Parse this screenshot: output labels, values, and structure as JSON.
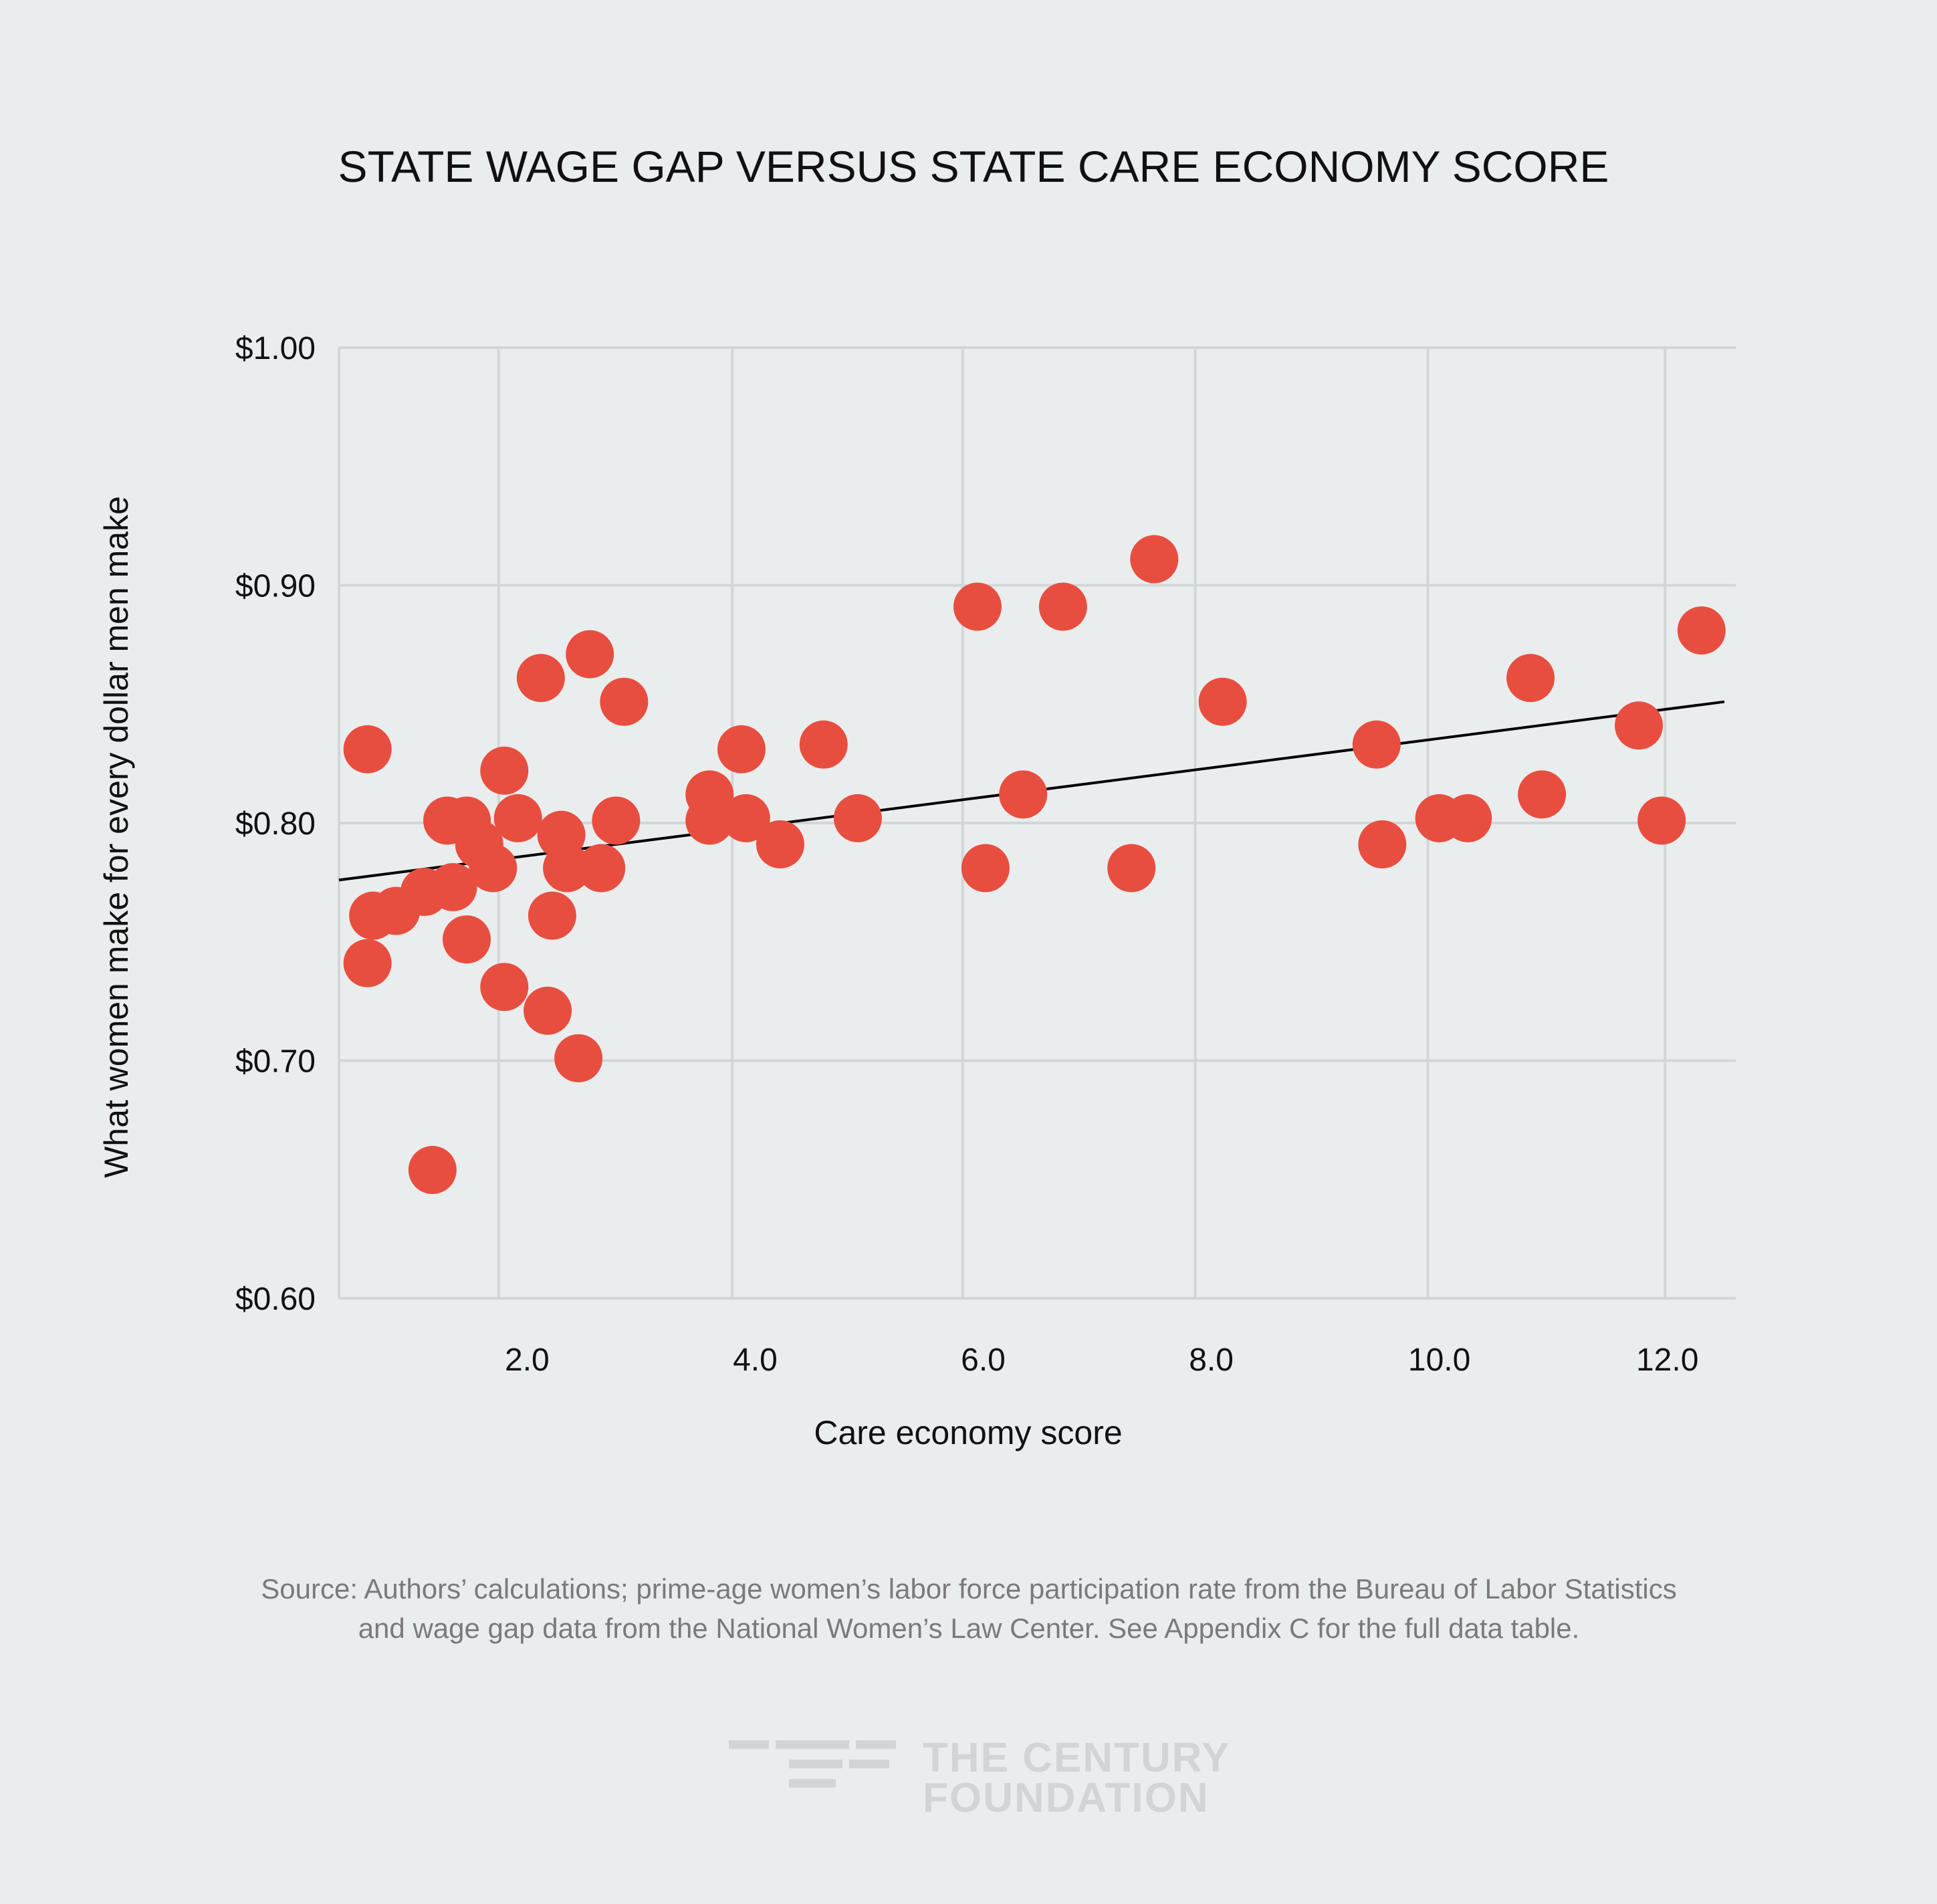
{
  "chart_data": {
    "type": "scatter",
    "title": "STATE WAGE GAP VERSUS STATE CARE ECONOMY SCORE",
    "xlabel": "Care economy score",
    "ylabel": "What women make for every dollar men make",
    "xlim": [
      0.35,
      12.6
    ],
    "ylim": [
      0.6,
      1.0
    ],
    "x_ticks": [
      2.0,
      4.0,
      6.0,
      8.0,
      10.0,
      12.0
    ],
    "x_tick_labels": [
      "2.0",
      "4.0",
      "6.0",
      "8.0",
      "10.0",
      "12.0"
    ],
    "x_gridlines": [
      1.75,
      3.8,
      5.82,
      7.86,
      9.9,
      11.98
    ],
    "y_ticks": [
      0.6,
      0.7,
      0.8,
      0.9,
      1.0
    ],
    "y_tick_labels": [
      "$0.60",
      "$0.70",
      "$0.80",
      "$0.90",
      "$1.00"
    ],
    "grid": true,
    "point_color": "#e84e3f",
    "trendline": {
      "x": [
        0.35,
        12.5
      ],
      "y": [
        0.776,
        0.851
      ],
      "color": "#000000"
    },
    "series": [
      {
        "name": "States",
        "points": [
          {
            "x": 0.6,
            "y": 0.831
          },
          {
            "x": 0.65,
            "y": 0.761
          },
          {
            "x": 0.6,
            "y": 0.741
          },
          {
            "x": 0.85,
            "y": 0.763
          },
          {
            "x": 1.1,
            "y": 0.771
          },
          {
            "x": 1.17,
            "y": 0.654
          },
          {
            "x": 1.3,
            "y": 0.801
          },
          {
            "x": 1.47,
            "y": 0.801
          },
          {
            "x": 1.35,
            "y": 0.773
          },
          {
            "x": 1.47,
            "y": 0.751
          },
          {
            "x": 1.58,
            "y": 0.791
          },
          {
            "x": 1.7,
            "y": 0.781
          },
          {
            "x": 1.8,
            "y": 0.822
          },
          {
            "x": 1.92,
            "y": 0.802
          },
          {
            "x": 1.8,
            "y": 0.731
          },
          {
            "x": 2.12,
            "y": 0.861
          },
          {
            "x": 2.22,
            "y": 0.761
          },
          {
            "x": 2.18,
            "y": 0.721
          },
          {
            "x": 2.3,
            "y": 0.795
          },
          {
            "x": 2.35,
            "y": 0.781
          },
          {
            "x": 2.45,
            "y": 0.701
          },
          {
            "x": 2.55,
            "y": 0.871
          },
          {
            "x": 2.65,
            "y": 0.781
          },
          {
            "x": 2.78,
            "y": 0.801
          },
          {
            "x": 2.85,
            "y": 0.851
          },
          {
            "x": 3.6,
            "y": 0.812
          },
          {
            "x": 3.6,
            "y": 0.801
          },
          {
            "x": 3.88,
            "y": 0.831
          },
          {
            "x": 3.92,
            "y": 0.802
          },
          {
            "x": 4.22,
            "y": 0.791
          },
          {
            "x": 4.6,
            "y": 0.833
          },
          {
            "x": 4.9,
            "y": 0.802
          },
          {
            "x": 5.95,
            "y": 0.891
          },
          {
            "x": 6.02,
            "y": 0.781
          },
          {
            "x": 6.35,
            "y": 0.812
          },
          {
            "x": 6.7,
            "y": 0.891
          },
          {
            "x": 7.3,
            "y": 0.781
          },
          {
            "x": 7.5,
            "y": 0.911
          },
          {
            "x": 8.1,
            "y": 0.851
          },
          {
            "x": 9.45,
            "y": 0.833
          },
          {
            "x": 9.5,
            "y": 0.791
          },
          {
            "x": 10.0,
            "y": 0.802
          },
          {
            "x": 10.25,
            "y": 0.802
          },
          {
            "x": 10.8,
            "y": 0.861
          },
          {
            "x": 10.9,
            "y": 0.812
          },
          {
            "x": 11.75,
            "y": 0.841
          },
          {
            "x": 11.95,
            "y": 0.801
          },
          {
            "x": 12.3,
            "y": 0.881
          }
        ]
      }
    ]
  },
  "source": {
    "line1": "Source: Authors’ calculations; prime-age women’s labor force participation rate from the Bureau of Labor Statistics",
    "line2": "and wage gap data from the National Women’s Law Center. See Appendix C for the full data table."
  },
  "logo": {
    "line1": "THE CENTURY",
    "line2": "FOUNDATION"
  }
}
